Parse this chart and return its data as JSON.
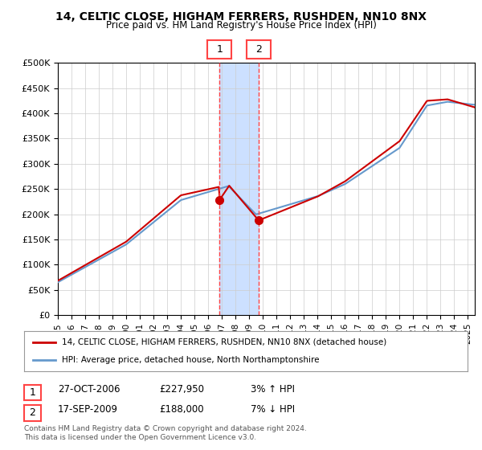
{
  "title": "14, CELTIC CLOSE, HIGHAM FERRERS, RUSHDEN, NN10 8NX",
  "subtitle": "Price paid vs. HM Land Registry's House Price Index (HPI)",
  "ylabel_values": [
    "£0",
    "£50K",
    "£100K",
    "£150K",
    "£200K",
    "£250K",
    "£300K",
    "£350K",
    "£400K",
    "£450K",
    "£500K"
  ],
  "yticks": [
    0,
    50000,
    100000,
    150000,
    200000,
    250000,
    300000,
    350000,
    400000,
    450000,
    500000
  ],
  "ylim": [
    0,
    500000
  ],
  "xlim_start": 1995.0,
  "xlim_end": 2025.5,
  "transaction1": {
    "date_num": 2006.82,
    "price": 227950,
    "label": "1",
    "pct": "3%",
    "dir": "↑",
    "date_str": "27-OCT-2006",
    "price_str": "£227,950"
  },
  "transaction2": {
    "date_num": 2009.71,
    "price": 188000,
    "label": "2",
    "pct": "7%",
    "dir": "↓",
    "date_str": "17-SEP-2009",
    "price_str": "£188,000"
  },
  "highlight_color": "#cce0ff",
  "highlight_x1": 2006.82,
  "highlight_x2": 2009.71,
  "vline_color": "#ff4444",
  "legend_line1": "14, CELTIC CLOSE, HIGHAM FERRERS, RUSHDEN, NN10 8NX (detached house)",
  "legend_line2": "HPI: Average price, detached house, North Northamptonshire",
  "footer": "Contains HM Land Registry data © Crown copyright and database right 2024.\nThis data is licensed under the Open Government Licence v3.0.",
  "table_row1": [
    "1",
    "27-OCT-2006",
    "£227,950",
    "3% ↑ HPI"
  ],
  "table_row2": [
    "2",
    "17-SEP-2009",
    "£188,000",
    "7% ↓ HPI"
  ],
  "price_line_color": "#cc0000",
  "hpi_line_color": "#6699cc",
  "background_color": "#ffffff",
  "grid_color": "#cccccc"
}
